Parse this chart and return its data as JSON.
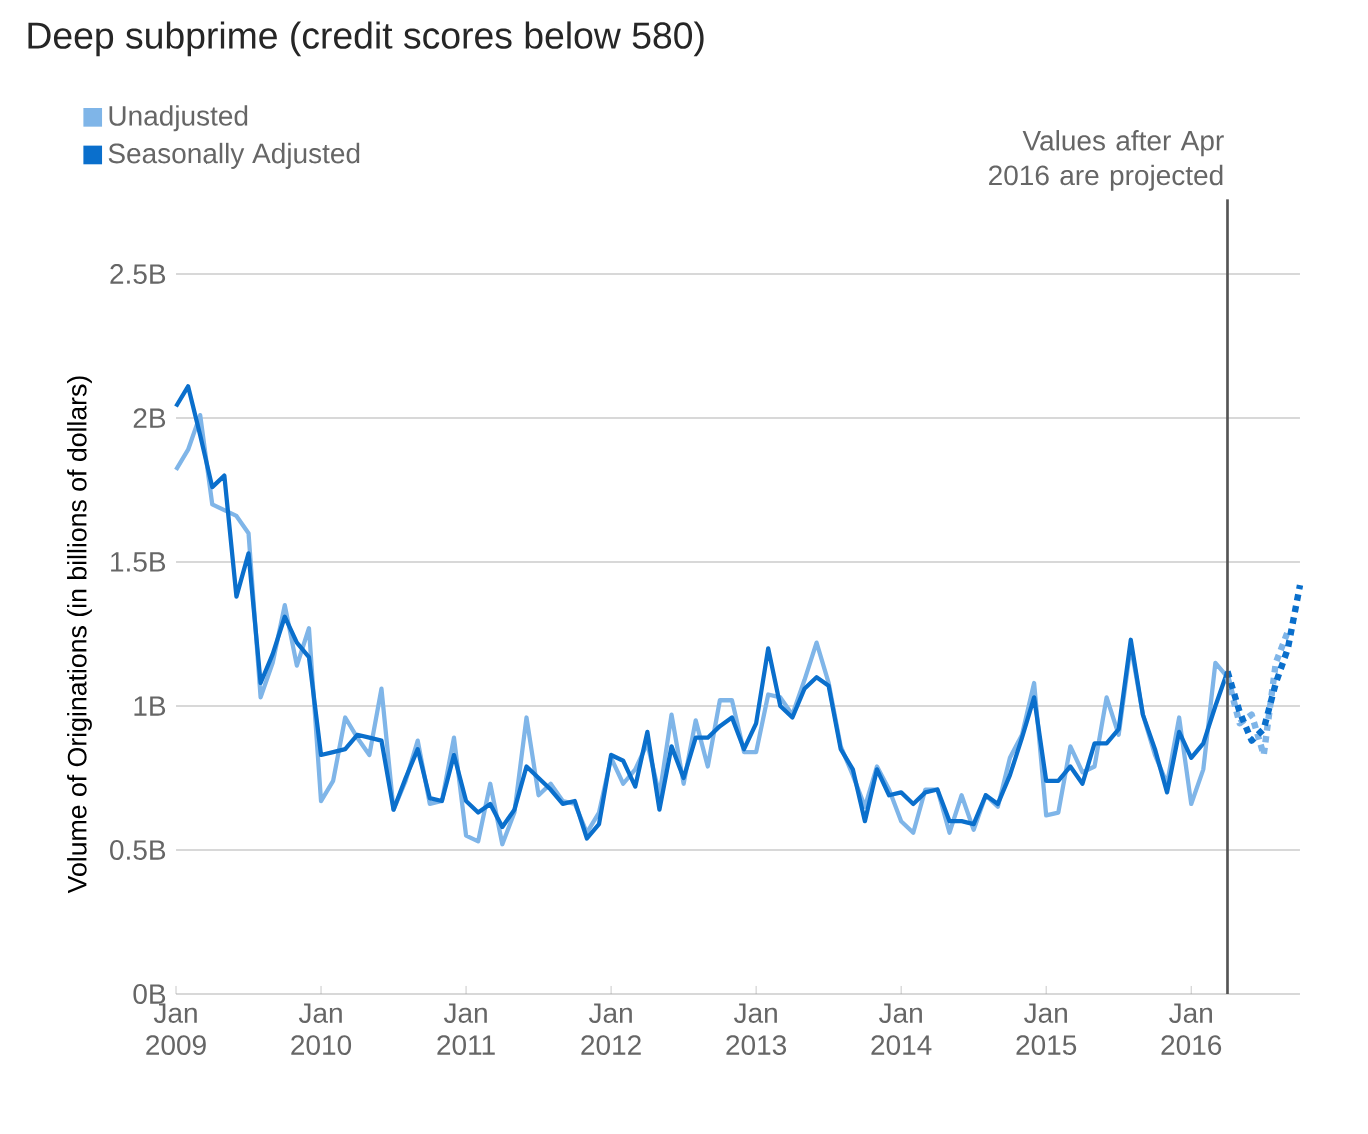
{
  "chart_data": {
    "type": "line",
    "title": "Deep subprime (credit scores below 580)",
    "ylabel": "Volume of Originations (in billions of dollars)",
    "x": [
      "2009-01",
      "2009-02",
      "2009-03",
      "2009-04",
      "2009-05",
      "2009-06",
      "2009-07",
      "2009-08",
      "2009-09",
      "2009-10",
      "2009-11",
      "2009-12",
      "2010-01",
      "2010-02",
      "2010-03",
      "2010-04",
      "2010-05",
      "2010-06",
      "2010-07",
      "2010-08",
      "2010-09",
      "2010-10",
      "2010-11",
      "2010-12",
      "2011-01",
      "2011-02",
      "2011-03",
      "2011-04",
      "2011-05",
      "2011-06",
      "2011-07",
      "2011-08",
      "2011-09",
      "2011-10",
      "2011-11",
      "2011-12",
      "2012-01",
      "2012-02",
      "2012-03",
      "2012-04",
      "2012-05",
      "2012-06",
      "2012-07",
      "2012-08",
      "2012-09",
      "2012-10",
      "2012-11",
      "2012-12",
      "2013-01",
      "2013-02",
      "2013-03",
      "2013-04",
      "2013-05",
      "2013-06",
      "2013-07",
      "2013-08",
      "2013-09",
      "2013-10",
      "2013-11",
      "2013-12",
      "2014-01",
      "2014-02",
      "2014-03",
      "2014-04",
      "2014-05",
      "2014-06",
      "2014-07",
      "2014-08",
      "2014-09",
      "2014-10",
      "2014-11",
      "2014-12",
      "2015-01",
      "2015-02",
      "2015-03",
      "2015-04",
      "2015-05",
      "2015-06",
      "2015-07",
      "2015-08",
      "2015-09",
      "2015-10",
      "2015-11",
      "2015-12",
      "2016-01",
      "2016-02",
      "2016-03",
      "2016-04"
    ],
    "series": [
      {
        "name": "Unadjusted",
        "color": "#7fb5e8",
        "values": [
          1.82,
          1.89,
          2.01,
          1.7,
          1.68,
          1.66,
          1.6,
          1.03,
          1.15,
          1.35,
          1.14,
          1.27,
          0.67,
          0.74,
          0.96,
          0.89,
          0.83,
          1.06,
          0.64,
          0.74,
          0.88,
          0.66,
          0.67,
          0.89,
          0.55,
          0.53,
          0.73,
          0.52,
          0.63,
          0.96,
          0.69,
          0.73,
          0.67,
          0.66,
          0.56,
          0.63,
          0.82,
          0.73,
          0.78,
          0.87,
          0.69,
          0.97,
          0.73,
          0.95,
          0.79,
          1.02,
          1.02,
          0.84,
          0.84,
          1.04,
          1.03,
          0.97,
          1.09,
          1.22,
          1.08,
          0.86,
          0.76,
          0.65,
          0.79,
          0.71,
          0.6,
          0.56,
          0.71,
          0.71,
          0.56,
          0.69,
          0.57,
          0.69,
          0.65,
          0.82,
          0.9,
          1.08,
          0.62,
          0.63,
          0.86,
          0.77,
          0.79,
          1.03,
          0.9,
          1.21,
          0.97,
          0.83,
          0.73,
          0.96,
          0.66,
          0.78,
          1.15,
          1.1
        ]
      },
      {
        "name": "Seasonally Adjusted",
        "color": "#0a6fcc",
        "values": [
          2.04,
          2.11,
          1.94,
          1.76,
          1.8,
          1.38,
          1.53,
          1.08,
          1.18,
          1.31,
          1.22,
          1.17,
          0.83,
          0.84,
          0.85,
          0.9,
          0.89,
          0.88,
          0.64,
          0.75,
          0.85,
          0.68,
          0.67,
          0.83,
          0.67,
          0.63,
          0.66,
          0.58,
          0.64,
          0.79,
          0.75,
          0.71,
          0.66,
          0.67,
          0.54,
          0.59,
          0.83,
          0.81,
          0.72,
          0.91,
          0.64,
          0.86,
          0.75,
          0.89,
          0.89,
          0.93,
          0.96,
          0.85,
          0.94,
          1.2,
          1.0,
          0.96,
          1.06,
          1.1,
          1.07,
          0.85,
          0.78,
          0.6,
          0.78,
          0.69,
          0.7,
          0.66,
          0.7,
          0.71,
          0.6,
          0.6,
          0.59,
          0.69,
          0.66,
          0.76,
          0.89,
          1.03,
          0.74,
          0.74,
          0.79,
          0.73,
          0.87,
          0.87,
          0.92,
          1.23,
          0.97,
          0.85,
          0.7,
          0.91,
          0.82,
          0.87,
          1.0,
          1.12
        ]
      },
      {
        "color": "#7fb5e8",
        "line_style": "dotted",
        "x": [
          "2016-04",
          "2016-05",
          "2016-06",
          "2016-07",
          "2016-08",
          "2016-09"
        ],
        "values": [
          1.1,
          0.94,
          0.97,
          0.83,
          1.15,
          1.26
        ]
      },
      {
        "color": "#0a6fcc",
        "line_style": "dotted",
        "x": [
          "2016-04",
          "2016-05",
          "2016-06",
          "2016-07",
          "2016-08",
          "2016-09",
          "2016-10"
        ],
        "values": [
          1.12,
          0.98,
          0.88,
          0.92,
          1.08,
          1.2,
          1.42
        ]
      }
    ],
    "xlim": [
      "2009-01",
      "2016-10"
    ],
    "xticks": [
      {
        "value": "2009-01",
        "label": "Jan 2009"
      },
      {
        "value": "2010-01",
        "label": "Jan 2010"
      },
      {
        "value": "2011-01",
        "label": "Jan 2011"
      },
      {
        "value": "2012-01",
        "label": "Jan 2012"
      },
      {
        "value": "2013-01",
        "label": "Jan 2013"
      },
      {
        "value": "2014-01",
        "label": "Jan 2014"
      },
      {
        "value": "2015-01",
        "label": "Jan 2015"
      },
      {
        "value": "2016-01",
        "label": "Jan 2016"
      }
    ],
    "ylim": [
      0,
      2.5
    ],
    "yticks": [
      {
        "value": 0,
        "label": "0B"
      },
      {
        "value": 0.5,
        "label": "0.5B"
      },
      {
        "value": 1,
        "label": "1B"
      },
      {
        "value": 1.5,
        "label": "1.5B"
      },
      {
        "value": 2,
        "label": "2B"
      },
      {
        "value": 2.5,
        "label": "2.5B"
      }
    ],
    "ref_lines": [
      {
        "axis": "x",
        "value": "2016-04",
        "label": "Values after Apr 2016 are projected",
        "color": "#555555"
      }
    ],
    "grid": "y",
    "legend": "top left",
    "line_style": "solid",
    "marker": "none"
  }
}
